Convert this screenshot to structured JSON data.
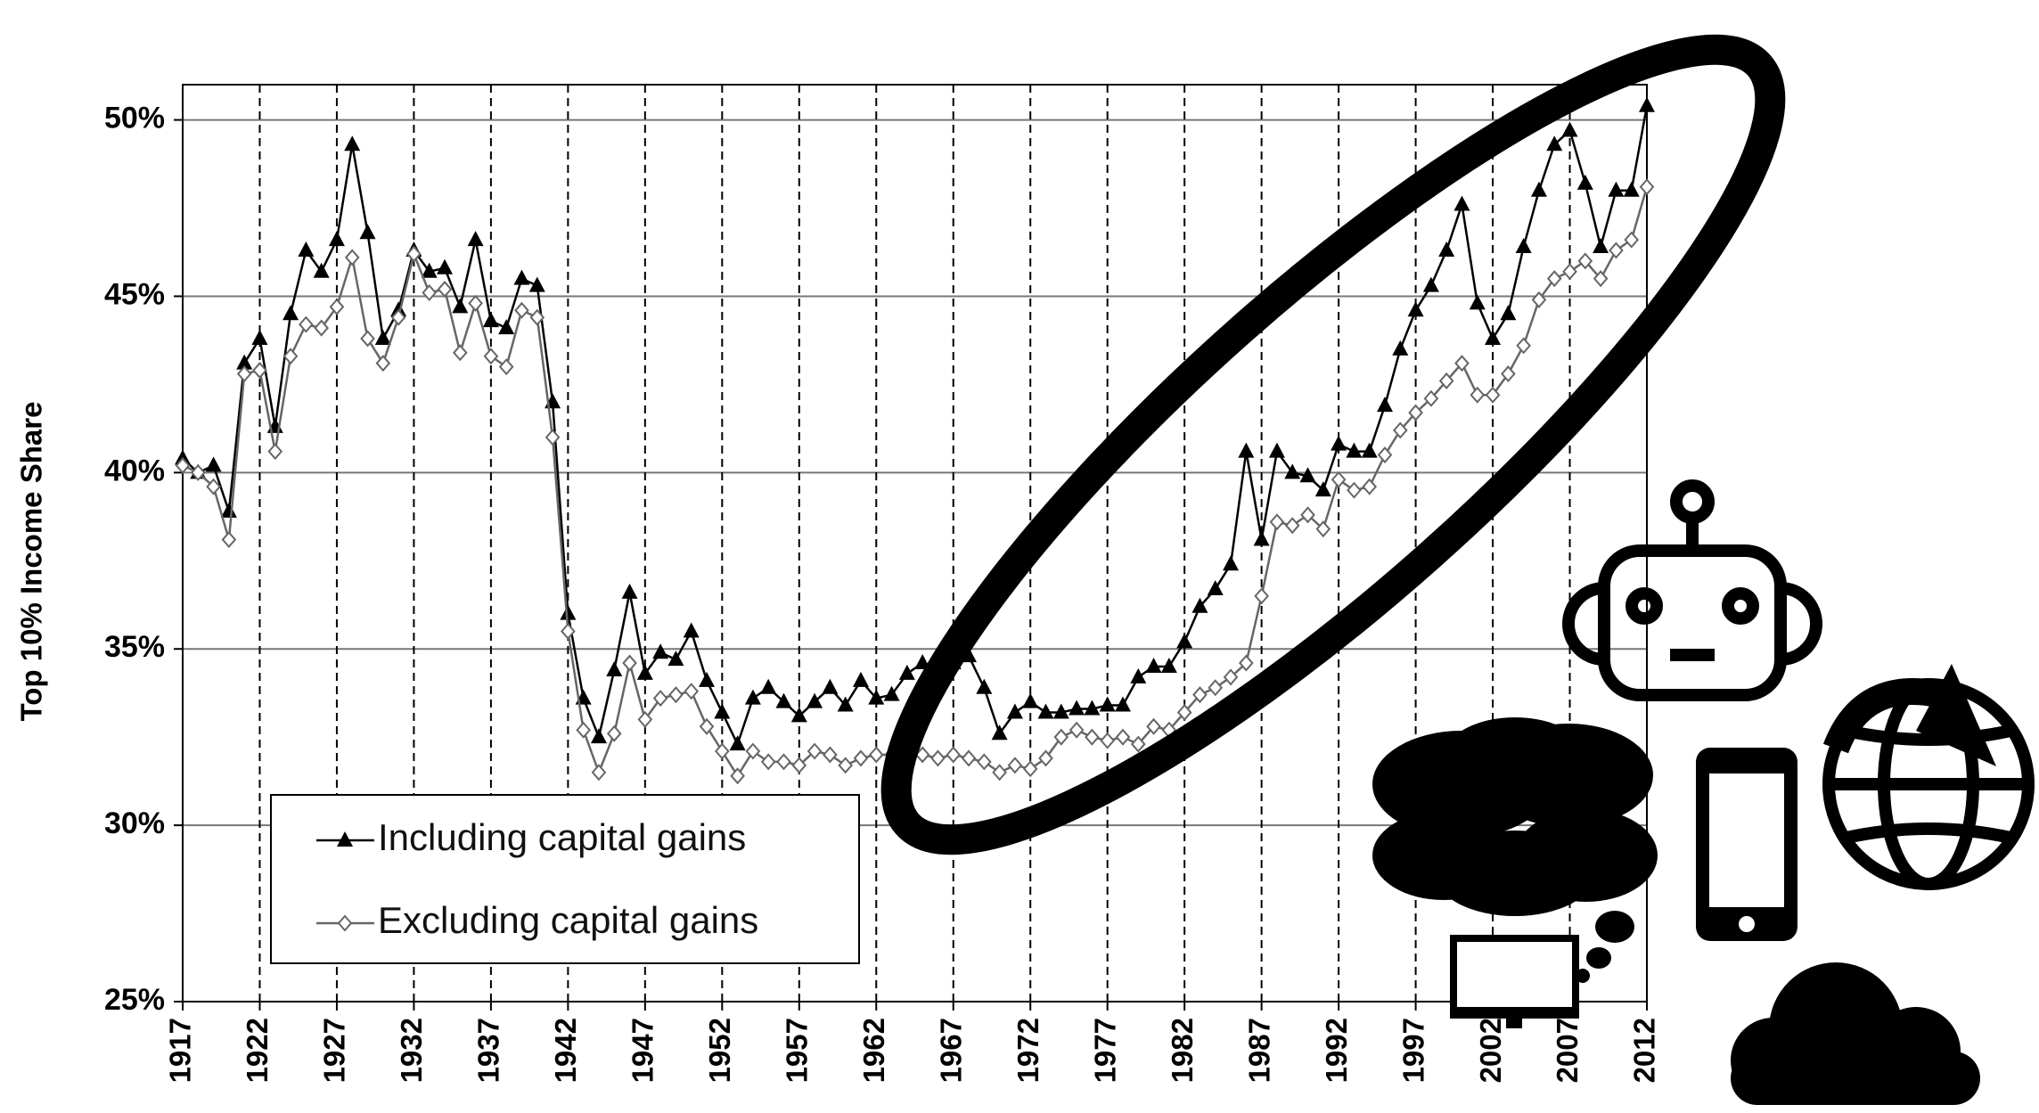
{
  "chart_data": {
    "type": "line",
    "y_label": "Top 10% Income Share",
    "x": [
      1917,
      1918,
      1919,
      1920,
      1921,
      1922,
      1923,
      1924,
      1925,
      1926,
      1927,
      1928,
      1929,
      1930,
      1931,
      1932,
      1933,
      1934,
      1935,
      1936,
      1937,
      1938,
      1939,
      1940,
      1941,
      1942,
      1943,
      1944,
      1945,
      1946,
      1947,
      1948,
      1949,
      1950,
      1951,
      1952,
      1953,
      1954,
      1955,
      1956,
      1957,
      1958,
      1959,
      1960,
      1961,
      1962,
      1963,
      1964,
      1965,
      1966,
      1967,
      1968,
      1969,
      1970,
      1971,
      1972,
      1973,
      1974,
      1975,
      1976,
      1977,
      1978,
      1979,
      1980,
      1981,
      1982,
      1983,
      1984,
      1985,
      1986,
      1987,
      1988,
      1989,
      1990,
      1991,
      1992,
      1993,
      1994,
      1995,
      1996,
      1997,
      1998,
      1999,
      2000,
      2001,
      2002,
      2003,
      2004,
      2005,
      2006,
      2007,
      2008,
      2009,
      2010,
      2011,
      2012
    ],
    "series": [
      {
        "name": "Including capital gains",
        "color": "#000000",
        "marker": "triangle",
        "values": [
          40.4,
          40.0,
          40.2,
          38.9,
          43.1,
          43.8,
          41.3,
          44.5,
          46.3,
          45.7,
          46.6,
          49.3,
          46.8,
          43.8,
          44.6,
          46.3,
          45.7,
          45.8,
          44.7,
          46.6,
          44.3,
          44.1,
          45.5,
          45.3,
          42.0,
          36.0,
          33.6,
          32.5,
          34.4,
          36.6,
          34.3,
          34.9,
          34.7,
          35.5,
          34.1,
          33.2,
          32.3,
          33.6,
          33.9,
          33.5,
          33.1,
          33.5,
          33.9,
          33.4,
          34.1,
          33.6,
          33.7,
          34.3,
          34.6,
          34.0,
          34.6,
          34.8,
          33.9,
          32.6,
          33.2,
          33.5,
          33.2,
          33.2,
          33.3,
          33.3,
          33.4,
          33.4,
          34.2,
          34.5,
          34.5,
          35.2,
          36.2,
          36.7,
          37.4,
          40.6,
          38.1,
          40.6,
          40.0,
          39.9,
          39.5,
          40.8,
          40.6,
          40.6,
          41.9,
          43.5,
          44.6,
          45.3,
          46.3,
          47.6,
          44.8,
          43.8,
          44.5,
          46.4,
          48.0,
          49.3,
          49.7,
          48.2,
          46.4,
          48.0,
          48.0,
          50.4
        ]
      },
      {
        "name": "Excluding capital gains",
        "color": "#666666",
        "marker": "diamond",
        "values": [
          40.2,
          40.0,
          39.6,
          38.1,
          42.8,
          42.9,
          40.6,
          43.3,
          44.2,
          44.1,
          44.7,
          46.1,
          43.8,
          43.1,
          44.4,
          46.2,
          45.1,
          45.2,
          43.4,
          44.8,
          43.3,
          43.0,
          44.6,
          44.4,
          41.0,
          35.5,
          32.7,
          31.5,
          32.6,
          34.6,
          33.0,
          33.6,
          33.7,
          33.8,
          32.8,
          32.1,
          31.4,
          32.1,
          31.8,
          31.8,
          31.7,
          32.1,
          32.0,
          31.7,
          31.9,
          32.0,
          32.0,
          31.9,
          32.0,
          31.9,
          32.0,
          31.9,
          31.8,
          31.5,
          31.7,
          31.6,
          31.9,
          32.5,
          32.7,
          32.5,
          32.4,
          32.5,
          32.3,
          32.8,
          32.7,
          33.2,
          33.7,
          33.9,
          34.2,
          34.6,
          36.5,
          38.6,
          38.5,
          38.8,
          38.4,
          39.8,
          39.5,
          39.6,
          40.5,
          41.2,
          41.7,
          42.1,
          42.6,
          43.1,
          42.2,
          42.2,
          42.8,
          43.6,
          44.9,
          45.5,
          45.7,
          46.0,
          45.5,
          46.3,
          46.6,
          48.1
        ]
      }
    ],
    "xlim": [
      1917,
      2012
    ],
    "xticks": [
      1917,
      1922,
      1927,
      1932,
      1937,
      1942,
      1947,
      1952,
      1957,
      1962,
      1967,
      1972,
      1977,
      1982,
      1987,
      1992,
      1997,
      2002,
      2007,
      2012
    ],
    "ylim": [
      25,
      51
    ],
    "yticks": [
      {
        "value": 25,
        "label": "25%"
      },
      {
        "value": 30,
        "label": "30%"
      },
      {
        "value": 35,
        "label": "35%"
      },
      {
        "value": 40,
        "label": "40%"
      },
      {
        "value": 45,
        "label": "45%"
      },
      {
        "value": 50,
        "label": "50%"
      }
    ],
    "grid": true
  }
}
